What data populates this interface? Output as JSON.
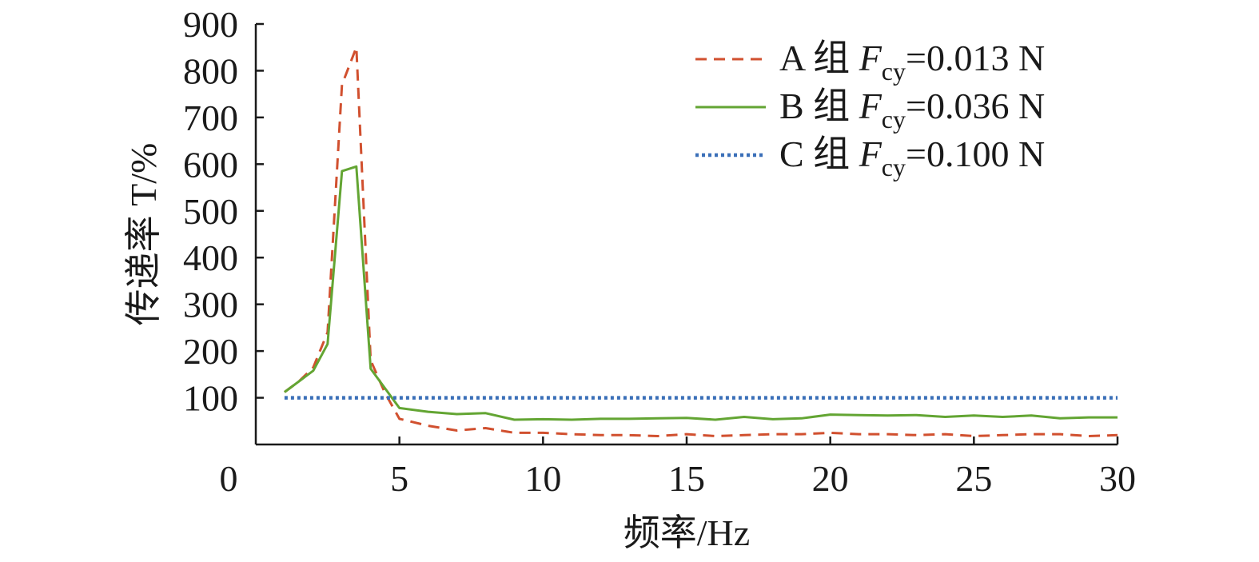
{
  "chart_data": {
    "type": "line",
    "xlabel": "频率/Hz",
    "ylabel": "传递率 T/%",
    "xlim": [
      0,
      30
    ],
    "ylim": [
      0,
      900
    ],
    "xticks": [
      0,
      5,
      10,
      15,
      20,
      25,
      30
    ],
    "yticks": [
      100,
      200,
      300,
      400,
      500,
      600,
      700,
      800,
      900
    ],
    "y_zero_label": "0",
    "grid": false,
    "legend_position": "top-right",
    "series": [
      {
        "name": "A 组 Fcy=0.013 N",
        "legend": {
          "group": "A 组 ",
          "symbol": "F",
          "subscript": "cy",
          "value": "=0.013 N"
        },
        "color": "#d1502f",
        "style": "dashed",
        "x": [
          1,
          1.5,
          2,
          2.5,
          3,
          3.5,
          4,
          4.5,
          5,
          6,
          7,
          8,
          9,
          10,
          11,
          12,
          13,
          14,
          15,
          16,
          17,
          18,
          19,
          20,
          21,
          22,
          23,
          24,
          25,
          26,
          27,
          28,
          29,
          30
        ],
        "y": [
          112,
          135,
          165,
          240,
          770,
          850,
          180,
          110,
          55,
          40,
          30,
          35,
          25,
          25,
          22,
          20,
          20,
          18,
          22,
          18,
          20,
          22,
          22,
          25,
          22,
          22,
          20,
          22,
          18,
          20,
          22,
          22,
          18,
          20
        ]
      },
      {
        "name": "B 组 Fcy=0.036 N",
        "legend": {
          "group": "B 组 ",
          "symbol": "F",
          "subscript": "cy",
          "value": "=0.036 N"
        },
        "color": "#63a533",
        "style": "solid",
        "x": [
          1,
          2,
          2.5,
          3,
          3.5,
          4,
          5,
          6,
          7,
          8,
          9,
          10,
          11,
          12,
          13,
          14,
          15,
          16,
          17,
          18,
          19,
          20,
          21,
          22,
          23,
          24,
          25,
          26,
          27,
          28,
          29,
          30
        ],
        "y": [
          112,
          158,
          215,
          585,
          595,
          162,
          78,
          70,
          65,
          67,
          53,
          54,
          53,
          55,
          55,
          56,
          57,
          53,
          59,
          54,
          56,
          64,
          63,
          62,
          63,
          59,
          62,
          59,
          62,
          56,
          58,
          58
        ]
      },
      {
        "name": "C 组 Fcy=0.100 N",
        "legend": {
          "group": "C 组 ",
          "symbol": "F",
          "subscript": "cy",
          "value": "=0.100 N"
        },
        "color": "#3a6fb8",
        "style": "dotted",
        "x": [
          1,
          30
        ],
        "y": [
          100,
          100
        ]
      }
    ]
  }
}
